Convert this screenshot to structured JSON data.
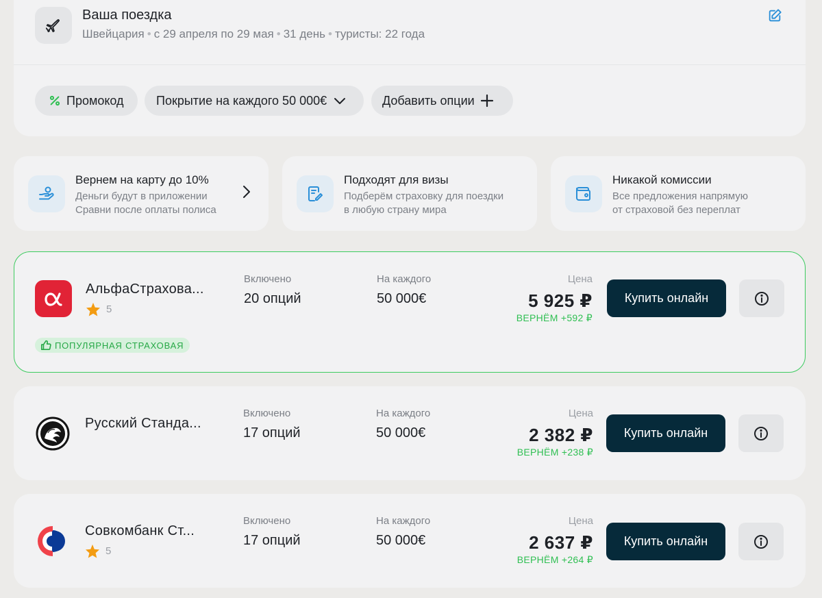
{
  "trip": {
    "title": "Ваша поездка",
    "country": "Швейцария",
    "dates": "с 29 апреля по 29 мая",
    "duration": "31 день",
    "tourists": "туристы: 22 года"
  },
  "filters": {
    "promo_label": "Промокод",
    "coverage_label": "Покрытие на каждого 50 000€",
    "add_options_label": "Добавить опции"
  },
  "features": [
    {
      "title": "Вернем на карту до 10%",
      "line1": "Деньги будут в приложении",
      "line2": "Сравни после оплаты полиса"
    },
    {
      "title": "Подходят для визы",
      "line1": "Подберём страховку для поездки",
      "line2": "в любую страну мира"
    },
    {
      "title": "Никакой комиссии",
      "line1": "Все предложения напрямую",
      "line2": "от страховой без переплат"
    }
  ],
  "offers": [
    {
      "company": "АльфаСтрахова...",
      "rating": "5",
      "included_label": "Включено",
      "included_value": "20 опций",
      "per_person_label": "На каждого",
      "per_person_value": "50 000€",
      "price_label": "Цена",
      "price": "5 925 ₽",
      "cashback": "ВЕРНЁМ +592 ₽",
      "buy_label": "Купить онлайн",
      "badge": "ПОПУЛЯРНАЯ СТРАХОВАЯ"
    },
    {
      "company": "Русский Станда...",
      "included_label": "Включено",
      "included_value": "17 опций",
      "per_person_label": "На каждого",
      "per_person_value": "50 000€",
      "price_label": "Цена",
      "price": "2 382 ₽",
      "cashback": "ВЕРНЁМ +238 ₽",
      "buy_label": "Купить онлайн"
    },
    {
      "company": "Совкомбанк Ст...",
      "rating": "5",
      "included_label": "Включено",
      "included_value": "17 опций",
      "per_person_label": "На каждого",
      "per_person_value": "50 000€",
      "price_label": "Цена",
      "price": "2 637 ₽",
      "cashback": "ВЕРНЁМ +264 ₽",
      "buy_label": "Купить онлайн"
    }
  ],
  "colors": {
    "accent_green": "#3ccb5f",
    "button_dark": "#062a3a",
    "alfa_red": "#e12336",
    "link_blue": "#2a8fd8",
    "star": "#f39c12"
  },
  "icons": {
    "trip": "airplane-icon",
    "edit": "edit-icon",
    "promo": "percent-icon",
    "coverage": "chevron-down-icon",
    "add": "plus-icon",
    "feature_1": "hand-coin-icon",
    "feature_2": "document-pen-icon",
    "feature_3": "wallet-icon",
    "info": "info-icon"
  }
}
